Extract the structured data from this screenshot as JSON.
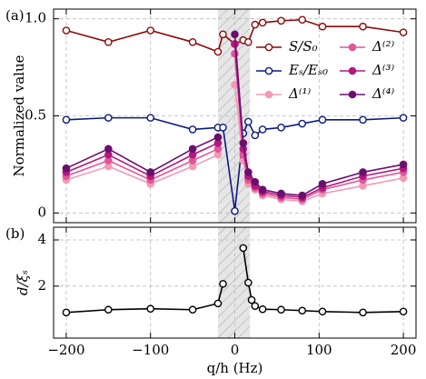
{
  "chart_data": [
    {
      "type": "line",
      "panel_label": "(a)",
      "ylabel": "Normalized value",
      "x": [
        -200,
        -150,
        -100,
        -50,
        -20,
        -14,
        0,
        10,
        16,
        24,
        33,
        55,
        80,
        104,
        152,
        200
      ],
      "xlim": [
        -215,
        215
      ],
      "ylim": [
        -0.05,
        1.05
      ],
      "yticks": [
        0,
        0.5,
        {
          "value": 1,
          "label": "1.0"
        }
      ],
      "shaded_region": [
        -20,
        18
      ],
      "grid": true,
      "series": [
        {
          "name": "S/S₀",
          "color": "#8b0a0a",
          "hollow": true,
          "values": [
            0.94,
            0.88,
            0.94,
            0.88,
            0.83,
            0.92,
            0.87,
            0.89,
            0.88,
            0.97,
            0.98,
            0.99,
            0.995,
            0.96,
            0.96,
            0.93
          ]
        },
        {
          "name": "Eₛ/Eₛ₀",
          "color": "#0a1a80",
          "hollow": true,
          "values": [
            0.48,
            0.49,
            0.49,
            0.43,
            0.44,
            0.44,
            0.01,
            0.41,
            0.47,
            0.4,
            0.43,
            0.44,
            0.46,
            0.48,
            0.48,
            0.49
          ]
        },
        {
          "name": "Δ⁽¹⁾",
          "color": "#f29ab5",
          "hollow": false,
          "values": [
            0.17,
            0.24,
            0.15,
            0.24,
            0.3,
            null,
            0.66,
            0.27,
            0.15,
            0.12,
            0.09,
            0.07,
            0.06,
            0.1,
            0.14,
            0.18
          ]
        },
        {
          "name": "Δ⁽²⁾",
          "color": "#e0569a",
          "hollow": false,
          "values": [
            0.19,
            0.27,
            0.17,
            0.27,
            0.33,
            null,
            0.82,
            0.3,
            0.17,
            0.13,
            0.1,
            0.08,
            0.07,
            0.12,
            0.17,
            0.21
          ]
        },
        {
          "name": "Δ⁽³⁾",
          "color": "#b3187f",
          "hollow": false,
          "values": [
            0.21,
            0.3,
            0.19,
            0.3,
            0.36,
            null,
            0.87,
            0.33,
            0.19,
            0.14,
            0.11,
            0.09,
            0.08,
            0.13,
            0.19,
            0.23
          ]
        },
        {
          "name": "Δ⁽⁴⁾",
          "color": "#6b0f6e",
          "hollow": false,
          "values": [
            0.23,
            0.33,
            0.21,
            0.33,
            0.39,
            null,
            0.92,
            0.36,
            0.21,
            0.16,
            0.12,
            0.1,
            0.09,
            0.15,
            0.21,
            0.25
          ]
        }
      ]
    },
    {
      "type": "line",
      "panel_label": "(b)",
      "ylabel": "d/ξₛ",
      "xlabel": "q/h (Hz)",
      "x": [
        -200,
        -150,
        -100,
        -50,
        -20,
        -14,
        0,
        10,
        16,
        20,
        24,
        33,
        55,
        80,
        104,
        152,
        200
      ],
      "xlim": [
        -215,
        215
      ],
      "ylim": [
        -0.25,
        4.55
      ],
      "yticks": [
        2,
        4
      ],
      "xticks": [
        {
          "value": -200,
          "label": "−200"
        },
        {
          "value": -100,
          "label": "−100"
        },
        0,
        100,
        200
      ],
      "shaded_region": [
        -20,
        18
      ],
      "grid": true,
      "series": [
        {
          "color": "#000000",
          "hollow": true,
          "values": [
            0.86,
            0.98,
            1.02,
            0.98,
            1.25,
            2.1,
            null,
            3.65,
            2.15,
            1.4,
            1.14,
            1.0,
            0.98,
            0.94,
            0.9,
            0.86,
            0.9
          ]
        }
      ]
    }
  ]
}
